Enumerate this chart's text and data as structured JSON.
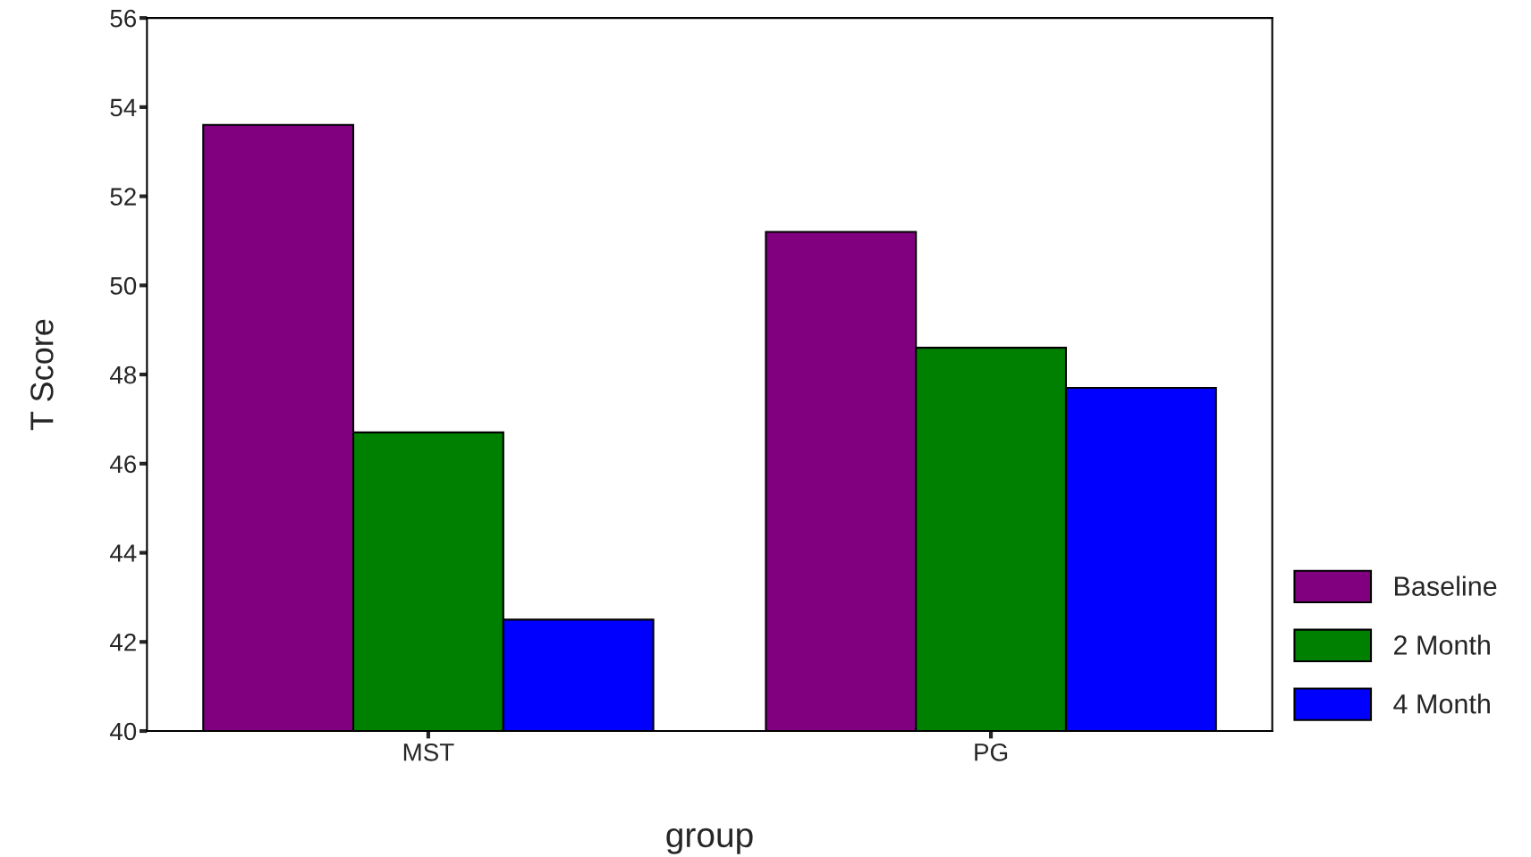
{
  "chart_data": {
    "type": "bar",
    "xlabel": "group",
    "ylabel": "T Score",
    "categories": [
      "MST",
      "PG"
    ],
    "series": [
      {
        "name": "Baseline",
        "color": "#800080",
        "values": [
          53.6,
          51.2
        ]
      },
      {
        "name": "2 Month",
        "color": "#008000",
        "values": [
          46.7,
          48.6
        ]
      },
      {
        "name": "4 Month",
        "color": "#0000ff",
        "values": [
          42.5,
          47.7
        ]
      }
    ],
    "ylim": [
      40,
      56
    ],
    "yticks": [
      40,
      42,
      44,
      46,
      48,
      50,
      52,
      54,
      56
    ],
    "grid": false,
    "legend": "right"
  }
}
